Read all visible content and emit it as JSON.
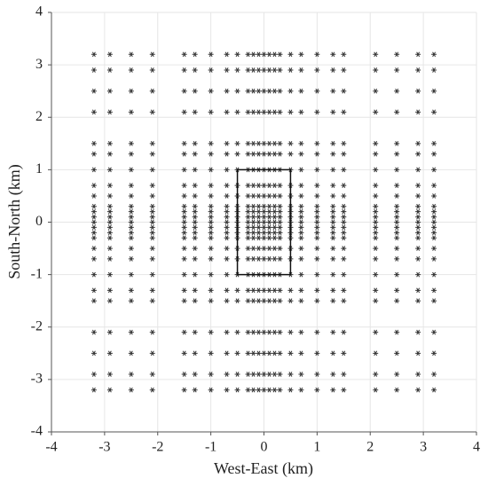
{
  "chart_data": {
    "type": "scatter",
    "x_label": "West-East (km)",
    "y_label": "South-North (km)",
    "xlim": [
      -4,
      4
    ],
    "ylim": [
      -4,
      4
    ],
    "xticks": [
      -4,
      -3,
      -2,
      -1,
      0,
      1,
      2,
      3,
      4
    ],
    "yticks": [
      -4,
      -3,
      -2,
      -1,
      0,
      1,
      2,
      3,
      4
    ],
    "grid": true,
    "color": "#333333",
    "box": {
      "x": [
        -0.5,
        0.5
      ],
      "y": [
        -1,
        1
      ]
    },
    "x": [
      -3.2,
      -2.9,
      -2.5,
      -2.1,
      -1.5,
      -1.3,
      -1,
      -0.7,
      -0.5,
      -0.3,
      -0.2,
      -0.1,
      0,
      0.1,
      0.2,
      0.3,
      0.5,
      0.7,
      1,
      1.3,
      1.5,
      2.1,
      2.5,
      2.9,
      3.2,
      -3.2,
      -2.9,
      -2.5,
      -2.1,
      -1.5,
      -1.3,
      -1,
      -0.7,
      -0.5,
      -0.3,
      -0.2,
      -0.1,
      0,
      0.1,
      0.2,
      0.3,
      0.5,
      0.7,
      1,
      1.3,
      1.5,
      2.1,
      2.5,
      2.9,
      3.2,
      -3.2,
      -2.9,
      -2.5,
      -2.1,
      -1.5,
      -1.3,
      -1,
      -0.7,
      -0.5,
      -0.3,
      -0.2,
      -0.1,
      0,
      0.1,
      0.2,
      0.3,
      0.5,
      0.7,
      1,
      1.3,
      1.5,
      2.1,
      2.5,
      2.9,
      3.2,
      -3.2,
      -2.9,
      -2.5,
      -2.1,
      -1.5,
      -1.3,
      -1,
      -0.7,
      -0.5,
      -0.3,
      -0.2,
      -0.1,
      0,
      0.1,
      0.2,
      0.3,
      0.5,
      0.7,
      1,
      1.3,
      1.5,
      2.1,
      2.5,
      2.9,
      3.2,
      -3.2,
      -2.9,
      -2.5,
      -2.1,
      -1.5,
      -1.3,
      -1,
      -0.7,
      -0.5,
      -0.3,
      -0.2,
      -0.1,
      0,
      0.1,
      0.2,
      0.3,
      0.5,
      0.7,
      1,
      1.3,
      1.5,
      2.1,
      2.5,
      2.9,
      3.2,
      -3.2,
      -2.9,
      -2.5,
      -2.1,
      -1.5,
      -1.3,
      -1,
      -0.7,
      -0.5,
      -0.3,
      -0.2,
      -0.1,
      0,
      0.1,
      0.2,
      0.3,
      0.5,
      0.7,
      1,
      1.3,
      1.5,
      2.1,
      2.5,
      2.9,
      3.2,
      -3.2,
      -2.9,
      -2.5,
      -2.1,
      -1.5,
      -1.3,
      -1,
      -0.7,
      -0.5,
      -0.3,
      -0.2,
      -0.1,
      0,
      0.1,
      0.2,
      0.3,
      0.5,
      0.7,
      1,
      1.3,
      1.5,
      2.1,
      2.5,
      2.9,
      3.2,
      -3.2,
      -2.9,
      -2.5,
      -2.1,
      -1.5,
      -1.3,
      -1,
      -0.7,
      -0.5,
      -0.3,
      -0.2,
      -0.1,
      0,
      0.1,
      0.2,
      0.3,
      0.5,
      0.7,
      1,
      1.3,
      1.5,
      2.1,
      2.5,
      2.9,
      3.2,
      -3.2,
      -2.9,
      -2.5,
      -2.1,
      -1.5,
      -1.3,
      -1,
      -0.7,
      -0.5,
      -0.3,
      -0.2,
      -0.1,
      0,
      0.1,
      0.2,
      0.3,
      0.5,
      0.7,
      1,
      1.3,
      1.5,
      2.1,
      2.5,
      2.9,
      3.2,
      -3.2,
      -2.9,
      -2.5,
      -2.1,
      -1.5,
      -1.3,
      -1,
      -0.7,
      -0.5,
      -0.3,
      -0.2,
      -0.1,
      0,
      0.1,
      0.2,
      0.3,
      0.5,
      0.7,
      1,
      1.3,
      1.5,
      2.1,
      2.5,
      2.9,
      3.2,
      -3.2,
      -2.9,
      -2.5,
      -2.1,
      -1.5,
      -1.3,
      -1,
      -0.7,
      -0.5,
      -0.3,
      -0.2,
      -0.1,
      0,
      0.1,
      0.2,
      0.3,
      0.5,
      0.7,
      1,
      1.3,
      1.5,
      2.1,
      2.5,
      2.9,
      3.2,
      -3.2,
      -2.9,
      -2.5,
      -2.1,
      -1.5,
      -1.3,
      -1,
      -0.7,
      -0.5,
      -0.3,
      -0.2,
      -0.1,
      0,
      0.1,
      0.2,
      0.3,
      0.5,
      0.7,
      1,
      1.3,
      1.5,
      2.1,
      2.5,
      2.9,
      3.2,
      -3.2,
      -2.9,
      -2.5,
      -2.1,
      -1.5,
      -1.3,
      -1,
      -0.7,
      -0.5,
      -0.3,
      -0.2,
      -0.1,
      0,
      0.1,
      0.2,
      0.3,
      0.5,
      0.7,
      1,
      1.3,
      1.5,
      2.1,
      2.5,
      2.9,
      3.2,
      -3.2,
      -2.9,
      -2.5,
      -2.1,
      -1.5,
      -1.3,
      -1,
      -0.7,
      -0.5,
      -0.3,
      -0.2,
      -0.1,
      0,
      0.1,
      0.2,
      0.3,
      0.5,
      0.7,
      1,
      1.3,
      1.5,
      2.1,
      2.5,
      2.9,
      3.2,
      -3.2,
      -2.9,
      -2.5,
      -2.1,
      -1.5,
      -1.3,
      -1,
      -0.7,
      -0.5,
      -0.3,
      -0.2,
      -0.1,
      0,
      0.1,
      0.2,
      0.3,
      0.5,
      0.7,
      1,
      1.3,
      1.5,
      2.1,
      2.5,
      2.9,
      3.2,
      -3.2,
      -2.9,
      -2.5,
      -2.1,
      -1.5,
      -1.3,
      -1,
      -0.7,
      -0.5,
      -0.3,
      -0.2,
      -0.1,
      0,
      0.1,
      0.2,
      0.3,
      0.5,
      0.7,
      1,
      1.3,
      1.5,
      2.1,
      2.5,
      2.9,
      3.2,
      -3.2,
      -2.9,
      -2.5,
      -2.1,
      -1.5,
      -1.3,
      -1,
      -0.7,
      -0.5,
      -0.3,
      -0.2,
      -0.1,
      0,
      0.1,
      0.2,
      0.3,
      0.5,
      0.7,
      1,
      1.3,
      1.5,
      2.1,
      2.5,
      2.9,
      3.2,
      -3.2,
      -2.9,
      -2.5,
      -2.1,
      -1.5,
      -1.3,
      -1,
      -0.7,
      -0.5,
      -0.3,
      -0.2,
      -0.1,
      0,
      0.1,
      0.2,
      0.3,
      0.5,
      0.7,
      1,
      1.3,
      1.5,
      2.1,
      2.5,
      2.9,
      3.2,
      -3.2,
      -2.9,
      -2.5,
      -2.1,
      -1.5,
      -1.3,
      -1,
      -0.7,
      -0.5,
      -0.3,
      -0.2,
      -0.1,
      0,
      0.1,
      0.2,
      0.3,
      0.5,
      0.7,
      1,
      1.3,
      1.5,
      2.1,
      2.5,
      2.9,
      3.2,
      -3.2,
      -2.9,
      -2.5,
      -2.1,
      -1.5,
      -1.3,
      -1,
      -0.7,
      -0.5,
      -0.3,
      -0.2,
      -0.1,
      0,
      0.1,
      0.2,
      0.3,
      0.5,
      0.7,
      1,
      1.3,
      1.5,
      2.1,
      2.5,
      2.9,
      3.2,
      -3.2,
      -2.9,
      -2.5,
      -2.1,
      -1.5,
      -1.3,
      -1,
      -0.7,
      -0.5,
      -0.3,
      -0.2,
      -0.1,
      0,
      0.1,
      0.2,
      0.3,
      0.5,
      0.7,
      1,
      1.3,
      1.5,
      2.1,
      2.5,
      2.9,
      3.2,
      -3.2,
      -2.9,
      -2.5,
      -2.1,
      -1.5,
      -1.3,
      -1,
      -0.7,
      -0.5,
      -0.3,
      -0.2,
      -0.1,
      0,
      0.1,
      0.2,
      0.3,
      0.5,
      0.7,
      1,
      1.3,
      1.5,
      2.1,
      2.5,
      2.9,
      3.2,
      -3.2,
      -2.9,
      -2.5,
      -2.1,
      -1.5,
      -1.3,
      -1,
      -0.7,
      -0.5,
      -0.3,
      -0.2,
      -0.1,
      0,
      0.1,
      0.2,
      0.3,
      0.5,
      0.7,
      1,
      1.3,
      1.5,
      2.1,
      2.5,
      2.9,
      3.2,
      -3.2,
      -2.9,
      -2.5,
      -2.1,
      -1.5,
      -1.3,
      -1,
      -0.7,
      -0.5,
      -0.3,
      -0.2,
      -0.1,
      0,
      0.1,
      0.2,
      0.3,
      0.5,
      0.7,
      1,
      1.3,
      1.5,
      2.1,
      2.5,
      2.9,
      3.2,
      -3.2,
      -2.9,
      -2.5,
      -2.1,
      -1.5,
      -1.3,
      -1,
      -0.7,
      -0.5,
      -0.3,
      -0.2,
      -0.1,
      0,
      0.1,
      0.2,
      0.3,
      0.5,
      0.7,
      1,
      1.3,
      1.5,
      2.1,
      2.5,
      2.9,
      3.2
    ],
    "y": [
      -3.2,
      -3.2,
      -3.2,
      -3.2,
      -3.2,
      -3.2,
      -3.2,
      -3.2,
      -3.2,
      -3.2,
      -3.2,
      -3.2,
      -3.2,
      -3.2,
      -3.2,
      -3.2,
      -3.2,
      -3.2,
      -3.2,
      -3.2,
      -3.2,
      -3.2,
      -3.2,
      -3.2,
      -3.2,
      -2.9,
      -2.9,
      -2.9,
      -2.9,
      -2.9,
      -2.9,
      -2.9,
      -2.9,
      -2.9,
      -2.9,
      -2.9,
      -2.9,
      -2.9,
      -2.9,
      -2.9,
      -2.9,
      -2.9,
      -2.9,
      -2.9,
      -2.9,
      -2.9,
      -2.9,
      -2.9,
      -2.9,
      -2.9,
      -2.5,
      -2.5,
      -2.5,
      -2.5,
      -2.5,
      -2.5,
      -2.5,
      -2.5,
      -2.5,
      -2.5,
      -2.5,
      -2.5,
      -2.5,
      -2.5,
      -2.5,
      -2.5,
      -2.5,
      -2.5,
      -2.5,
      -2.5,
      -2.5,
      -2.5,
      -2.5,
      -2.5,
      -2.5,
      -2.1,
      -2.1,
      -2.1,
      -2.1,
      -2.1,
      -2.1,
      -2.1,
      -2.1,
      -2.1,
      -2.1,
      -2.1,
      -2.1,
      -2.1,
      -2.1,
      -2.1,
      -2.1,
      -2.1,
      -2.1,
      -2.1,
      -2.1,
      -2.1,
      -2.1,
      -2.1,
      -2.1,
      -2.1,
      -1.5,
      -1.5,
      -1.5,
      -1.5,
      -1.5,
      -1.5,
      -1.5,
      -1.5,
      -1.5,
      -1.5,
      -1.5,
      -1.5,
      -1.5,
      -1.5,
      -1.5,
      -1.5,
      -1.5,
      -1.5,
      -1.5,
      -1.5,
      -1.5,
      -1.5,
      -1.5,
      -1.5,
      -1.5,
      -1.3,
      -1.3,
      -1.3,
      -1.3,
      -1.3,
      -1.3,
      -1.3,
      -1.3,
      -1.3,
      -1.3,
      -1.3,
      -1.3,
      -1.3,
      -1.3,
      -1.3,
      -1.3,
      -1.3,
      -1.3,
      -1.3,
      -1.3,
      -1.3,
      -1.3,
      -1.3,
      -1.3,
      -1.3,
      -1,
      -1,
      -1,
      -1,
      -1,
      -1,
      -1,
      -1,
      -1,
      -1,
      -1,
      -1,
      -1,
      -1,
      -1,
      -1,
      -1,
      -1,
      -1,
      -1,
      -1,
      -1,
      -1,
      -1,
      -1,
      -0.7,
      -0.7,
      -0.7,
      -0.7,
      -0.7,
      -0.7,
      -0.7,
      -0.7,
      -0.7,
      -0.7,
      -0.7,
      -0.7,
      -0.7,
      -0.7,
      -0.7,
      -0.7,
      -0.7,
      -0.7,
      -0.7,
      -0.7,
      -0.7,
      -0.7,
      -0.7,
      -0.7,
      -0.7,
      -0.5,
      -0.5,
      -0.5,
      -0.5,
      -0.5,
      -0.5,
      -0.5,
      -0.5,
      -0.5,
      -0.5,
      -0.5,
      -0.5,
      -0.5,
      -0.5,
      -0.5,
      -0.5,
      -0.5,
      -0.5,
      -0.5,
      -0.5,
      -0.5,
      -0.5,
      -0.5,
      -0.5,
      -0.5,
      -0.3,
      -0.3,
      -0.3,
      -0.3,
      -0.3,
      -0.3,
      -0.3,
      -0.3,
      -0.3,
      -0.3,
      -0.3,
      -0.3,
      -0.3,
      -0.3,
      -0.3,
      -0.3,
      -0.3,
      -0.3,
      -0.3,
      -0.3,
      -0.3,
      -0.3,
      -0.3,
      -0.3,
      -0.3,
      -0.2,
      -0.2,
      -0.2,
      -0.2,
      -0.2,
      -0.2,
      -0.2,
      -0.2,
      -0.2,
      -0.2,
      -0.2,
      -0.2,
      -0.2,
      -0.2,
      -0.2,
      -0.2,
      -0.2,
      -0.2,
      -0.2,
      -0.2,
      -0.2,
      -0.2,
      -0.2,
      -0.2,
      -0.2,
      -0.1,
      -0.1,
      -0.1,
      -0.1,
      -0.1,
      -0.1,
      -0.1,
      -0.1,
      -0.1,
      -0.1,
      -0.1,
      -0.1,
      -0.1,
      -0.1,
      -0.1,
      -0.1,
      -0.1,
      -0.1,
      -0.1,
      -0.1,
      -0.1,
      -0.1,
      -0.1,
      -0.1,
      -0.1,
      0,
      0,
      0,
      0,
      0,
      0,
      0,
      0,
      0,
      0,
      0,
      0,
      0,
      0,
      0,
      0,
      0,
      0,
      0,
      0,
      0,
      0,
      0,
      0,
      0,
      0.1,
      0.1,
      0.1,
      0.1,
      0.1,
      0.1,
      0.1,
      0.1,
      0.1,
      0.1,
      0.1,
      0.1,
      0.1,
      0.1,
      0.1,
      0.1,
      0.1,
      0.1,
      0.1,
      0.1,
      0.1,
      0.1,
      0.1,
      0.1,
      0.1,
      0.2,
      0.2,
      0.2,
      0.2,
      0.2,
      0.2,
      0.2,
      0.2,
      0.2,
      0.2,
      0.2,
      0.2,
      0.2,
      0.2,
      0.2,
      0.2,
      0.2,
      0.2,
      0.2,
      0.2,
      0.2,
      0.2,
      0.2,
      0.2,
      0.2,
      0.3,
      0.3,
      0.3,
      0.3,
      0.3,
      0.3,
      0.3,
      0.3,
      0.3,
      0.3,
      0.3,
      0.3,
      0.3,
      0.3,
      0.3,
      0.3,
      0.3,
      0.3,
      0.3,
      0.3,
      0.3,
      0.3,
      0.3,
      0.3,
      0.3,
      0.5,
      0.5,
      0.5,
      0.5,
      0.5,
      0.5,
      0.5,
      0.5,
      0.5,
      0.5,
      0.5,
      0.5,
      0.5,
      0.5,
      0.5,
      0.5,
      0.5,
      0.5,
      0.5,
      0.5,
      0.5,
      0.5,
      0.5,
      0.5,
      0.5,
      0.7,
      0.7,
      0.7,
      0.7,
      0.7,
      0.7,
      0.7,
      0.7,
      0.7,
      0.7,
      0.7,
      0.7,
      0.7,
      0.7,
      0.7,
      0.7,
      0.7,
      0.7,
      0.7,
      0.7,
      0.7,
      0.7,
      0.7,
      0.7,
      0.7,
      1,
      1,
      1,
      1,
      1,
      1,
      1,
      1,
      1,
      1,
      1,
      1,
      1,
      1,
      1,
      1,
      1,
      1,
      1,
      1,
      1,
      1,
      1,
      1,
      1,
      1.3,
      1.3,
      1.3,
      1.3,
      1.3,
      1.3,
      1.3,
      1.3,
      1.3,
      1.3,
      1.3,
      1.3,
      1.3,
      1.3,
      1.3,
      1.3,
      1.3,
      1.3,
      1.3,
      1.3,
      1.3,
      1.3,
      1.3,
      1.3,
      1.3,
      1.5,
      1.5,
      1.5,
      1.5,
      1.5,
      1.5,
      1.5,
      1.5,
      1.5,
      1.5,
      1.5,
      1.5,
      1.5,
      1.5,
      1.5,
      1.5,
      1.5,
      1.5,
      1.5,
      1.5,
      1.5,
      1.5,
      1.5,
      1.5,
      1.5,
      2.1,
      2.1,
      2.1,
      2.1,
      2.1,
      2.1,
      2.1,
      2.1,
      2.1,
      2.1,
      2.1,
      2.1,
      2.1,
      2.1,
      2.1,
      2.1,
      2.1,
      2.1,
      2.1,
      2.1,
      2.1,
      2.1,
      2.1,
      2.1,
      2.1,
      2.5,
      2.5,
      2.5,
      2.5,
      2.5,
      2.5,
      2.5,
      2.5,
      2.5,
      2.5,
      2.5,
      2.5,
      2.5,
      2.5,
      2.5,
      2.5,
      2.5,
      2.5,
      2.5,
      2.5,
      2.5,
      2.5,
      2.5,
      2.5,
      2.5,
      2.9,
      2.9,
      2.9,
      2.9,
      2.9,
      2.9,
      2.9,
      2.9,
      2.9,
      2.9,
      2.9,
      2.9,
      2.9,
      2.9,
      2.9,
      2.9,
      2.9,
      2.9,
      2.9,
      2.9,
      2.9,
      2.9,
      2.9,
      2.9,
      2.9,
      3.2,
      3.2,
      3.2,
      3.2,
      3.2,
      3.2,
      3.2,
      3.2,
      3.2,
      3.2,
      3.2,
      3.2,
      3.2,
      3.2,
      3.2,
      3.2,
      3.2,
      3.2,
      3.2,
      3.2,
      3.2,
      3.2,
      3.2,
      3.2,
      3.2
    ]
  }
}
